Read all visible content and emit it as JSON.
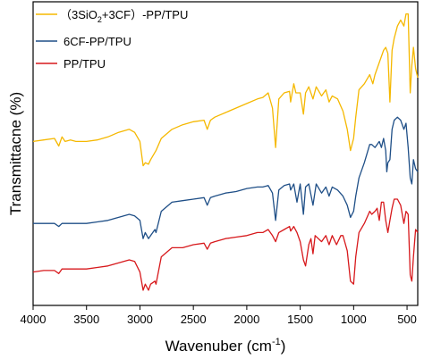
{
  "chart_data": {
    "type": "line",
    "xlabel_main": "Wavenuber (cm",
    "xlabel_sup": "-1",
    "xlabel_end": ")",
    "ylabel": "Transmittacne (%)",
    "xlim": [
      4000,
      400
    ],
    "x_reversed": true,
    "x_ticks": [
      4000,
      3500,
      3000,
      2500,
      2000,
      1500,
      1000,
      500
    ],
    "y_tick_labels": false,
    "grid": false,
    "legend_position": "top-left",
    "legend": {
      "entry0": {
        "pre": "（3SiO",
        "sub": "2",
        "post": "+3CF）-PP/TPU"
      },
      "entry1": {
        "text": "6CF-PP/TPU"
      },
      "entry2": {
        "text": "PP/TPU"
      }
    },
    "ylim": [
      0,
      100
    ],
    "series": [
      {
        "color": "#f5b800",
        "points": [
          [
            4000,
            54
          ],
          [
            3900,
            54.5
          ],
          [
            3800,
            55
          ],
          [
            3760,
            52.5
          ],
          [
            3730,
            55.5
          ],
          [
            3700,
            54
          ],
          [
            3650,
            54.5
          ],
          [
            3600,
            54
          ],
          [
            3500,
            54
          ],
          [
            3400,
            54.5
          ],
          [
            3300,
            55.5
          ],
          [
            3200,
            57
          ],
          [
            3100,
            58
          ],
          [
            3050,
            57
          ],
          [
            3000,
            54
          ],
          [
            2970,
            46
          ],
          [
            2950,
            47
          ],
          [
            2920,
            46.5
          ],
          [
            2900,
            48
          ],
          [
            2850,
            51
          ],
          [
            2800,
            55
          ],
          [
            2700,
            58
          ],
          [
            2600,
            59.5
          ],
          [
            2500,
            60.5
          ],
          [
            2400,
            61
          ],
          [
            2370,
            58
          ],
          [
            2340,
            61
          ],
          [
            2300,
            62
          ],
          [
            2200,
            63.5
          ],
          [
            2100,
            65
          ],
          [
            2000,
            66.5
          ],
          [
            1900,
            68
          ],
          [
            1850,
            68.5
          ],
          [
            1800,
            70
          ],
          [
            1760,
            65
          ],
          [
            1730,
            52
          ],
          [
            1700,
            68
          ],
          [
            1650,
            70
          ],
          [
            1600,
            70.5
          ],
          [
            1590,
            67
          ],
          [
            1560,
            73
          ],
          [
            1540,
            70
          ],
          [
            1500,
            70
          ],
          [
            1470,
            63
          ],
          [
            1450,
            70
          ],
          [
            1420,
            72
          ],
          [
            1380,
            68
          ],
          [
            1350,
            72
          ],
          [
            1300,
            69
          ],
          [
            1260,
            71
          ],
          [
            1230,
            67
          ],
          [
            1200,
            69
          ],
          [
            1150,
            68
          ],
          [
            1100,
            64
          ],
          [
            1060,
            58
          ],
          [
            1030,
            51
          ],
          [
            1000,
            55
          ],
          [
            980,
            62
          ],
          [
            950,
            71
          ],
          [
            900,
            73
          ],
          [
            850,
            76
          ],
          [
            820,
            73
          ],
          [
            800,
            76
          ],
          [
            760,
            80
          ],
          [
            720,
            84
          ],
          [
            700,
            85
          ],
          [
            680,
            83
          ],
          [
            660,
            67
          ],
          [
            640,
            84
          ],
          [
            620,
            88
          ],
          [
            590,
            92
          ],
          [
            560,
            94
          ],
          [
            530,
            92
          ],
          [
            510,
            96
          ],
          [
            490,
            96
          ],
          [
            470,
            70
          ],
          [
            455,
            79
          ],
          [
            440,
            85
          ],
          [
            420,
            78
          ],
          [
            400,
            75
          ]
        ]
      },
      {
        "color": "#1f4f87",
        "points": [
          [
            4000,
            27
          ],
          [
            3900,
            27
          ],
          [
            3800,
            27
          ],
          [
            3760,
            26
          ],
          [
            3730,
            27
          ],
          [
            3600,
            27
          ],
          [
            3500,
            27
          ],
          [
            3400,
            27.5
          ],
          [
            3300,
            28
          ],
          [
            3200,
            29
          ],
          [
            3100,
            30
          ],
          [
            3050,
            29.5
          ],
          [
            3000,
            28
          ],
          [
            2970,
            22
          ],
          [
            2950,
            24
          ],
          [
            2920,
            22
          ],
          [
            2900,
            23
          ],
          [
            2860,
            25
          ],
          [
            2850,
            24
          ],
          [
            2800,
            31
          ],
          [
            2700,
            34
          ],
          [
            2600,
            34.5
          ],
          [
            2500,
            35
          ],
          [
            2400,
            35.5
          ],
          [
            2370,
            33
          ],
          [
            2340,
            35.5
          ],
          [
            2300,
            36
          ],
          [
            2200,
            37
          ],
          [
            2100,
            37.5
          ],
          [
            2000,
            38.5
          ],
          [
            1900,
            39
          ],
          [
            1850,
            39
          ],
          [
            1800,
            39.5
          ],
          [
            1760,
            37
          ],
          [
            1730,
            28
          ],
          [
            1700,
            38
          ],
          [
            1650,
            39.5
          ],
          [
            1600,
            40
          ],
          [
            1590,
            38
          ],
          [
            1560,
            40
          ],
          [
            1530,
            34
          ],
          [
            1500,
            40
          ],
          [
            1470,
            30
          ],
          [
            1450,
            39
          ],
          [
            1420,
            40
          ],
          [
            1380,
            33
          ],
          [
            1350,
            40
          ],
          [
            1300,
            37
          ],
          [
            1260,
            39
          ],
          [
            1230,
            36
          ],
          [
            1200,
            39
          ],
          [
            1150,
            38
          ],
          [
            1100,
            36
          ],
          [
            1060,
            33
          ],
          [
            1030,
            29
          ],
          [
            1000,
            31
          ],
          [
            980,
            36
          ],
          [
            950,
            42
          ],
          [
            900,
            47
          ],
          [
            850,
            53
          ],
          [
            830,
            53
          ],
          [
            800,
            52
          ],
          [
            760,
            54
          ],
          [
            740,
            52
          ],
          [
            720,
            55
          ],
          [
            700,
            51
          ],
          [
            690,
            44
          ],
          [
            680,
            47
          ],
          [
            660,
            48
          ],
          [
            640,
            58
          ],
          [
            620,
            61
          ],
          [
            590,
            62
          ],
          [
            560,
            61
          ],
          [
            530,
            58
          ],
          [
            510,
            60
          ],
          [
            490,
            52
          ],
          [
            470,
            42
          ],
          [
            455,
            40
          ],
          [
            440,
            48
          ],
          [
            420,
            45
          ],
          [
            400,
            44
          ]
        ]
      },
      {
        "color": "#d7191c",
        "points": [
          [
            4000,
            11
          ],
          [
            3900,
            11.5
          ],
          [
            3800,
            11.5
          ],
          [
            3760,
            10.5
          ],
          [
            3730,
            12
          ],
          [
            3600,
            12
          ],
          [
            3500,
            12
          ],
          [
            3400,
            12.5
          ],
          [
            3300,
            13
          ],
          [
            3200,
            14
          ],
          [
            3100,
            15
          ],
          [
            3050,
            14.5
          ],
          [
            3000,
            11
          ],
          [
            2970,
            5
          ],
          [
            2950,
            7
          ],
          [
            2920,
            5
          ],
          [
            2900,
            7
          ],
          [
            2860,
            8
          ],
          [
            2850,
            7
          ],
          [
            2800,
            16
          ],
          [
            2700,
            19
          ],
          [
            2600,
            19
          ],
          [
            2500,
            20
          ],
          [
            2400,
            20.5
          ],
          [
            2370,
            18.5
          ],
          [
            2340,
            20.5
          ],
          [
            2300,
            21
          ],
          [
            2200,
            22
          ],
          [
            2100,
            22.5
          ],
          [
            2000,
            23
          ],
          [
            1900,
            24
          ],
          [
            1850,
            24
          ],
          [
            1800,
            25
          ],
          [
            1760,
            23
          ],
          [
            1730,
            21
          ],
          [
            1700,
            24
          ],
          [
            1650,
            25
          ],
          [
            1600,
            26
          ],
          [
            1590,
            24.5
          ],
          [
            1560,
            26
          ],
          [
            1530,
            24
          ],
          [
            1500,
            21
          ],
          [
            1470,
            15
          ],
          [
            1450,
            13
          ],
          [
            1420,
            20
          ],
          [
            1400,
            22
          ],
          [
            1380,
            17
          ],
          [
            1360,
            23
          ],
          [
            1300,
            21
          ],
          [
            1260,
            23
          ],
          [
            1230,
            20
          ],
          [
            1200,
            23
          ],
          [
            1160,
            20
          ],
          [
            1120,
            23
          ],
          [
            1100,
            23
          ],
          [
            1060,
            18
          ],
          [
            1030,
            8
          ],
          [
            1000,
            7
          ],
          [
            980,
            16
          ],
          [
            950,
            24
          ],
          [
            900,
            27
          ],
          [
            850,
            31
          ],
          [
            830,
            30
          ],
          [
            800,
            31
          ],
          [
            780,
            32
          ],
          [
            760,
            28
          ],
          [
            740,
            34
          ],
          [
            720,
            34
          ],
          [
            700,
            28
          ],
          [
            680,
            24
          ],
          [
            660,
            28
          ],
          [
            640,
            32
          ],
          [
            620,
            35
          ],
          [
            590,
            35
          ],
          [
            560,
            33
          ],
          [
            530,
            27
          ],
          [
            510,
            31
          ],
          [
            490,
            30
          ],
          [
            470,
            10
          ],
          [
            455,
            8
          ],
          [
            440,
            16
          ],
          [
            420,
            25
          ],
          [
            400,
            24
          ]
        ]
      }
    ]
  }
}
